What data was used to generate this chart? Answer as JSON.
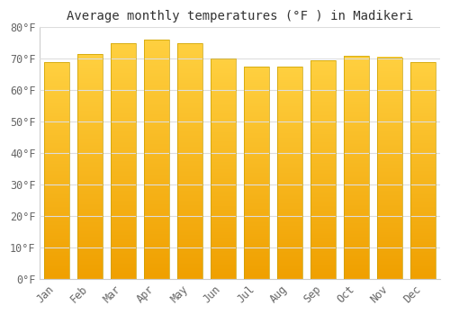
{
  "title": "Average monthly temperatures (°F ) in Madikeri",
  "months": [
    "Jan",
    "Feb",
    "Mar",
    "Apr",
    "May",
    "Jun",
    "Jul",
    "Aug",
    "Sep",
    "Oct",
    "Nov",
    "Dec"
  ],
  "values": [
    69,
    71.5,
    75,
    76,
    75,
    70,
    67.5,
    67.5,
    69.5,
    71,
    70.5,
    69
  ],
  "bar_color_top": "#FFD040",
  "bar_color_bottom": "#F0A000",
  "bar_edge_color": "#C8A000",
  "background_color": "#FFFFFF",
  "grid_color": "#DDDDDD",
  "ylim": [
    0,
    80
  ],
  "yticks": [
    0,
    10,
    20,
    30,
    40,
    50,
    60,
    70,
    80
  ],
  "title_fontsize": 10,
  "tick_fontsize": 8.5,
  "bar_width": 0.75
}
